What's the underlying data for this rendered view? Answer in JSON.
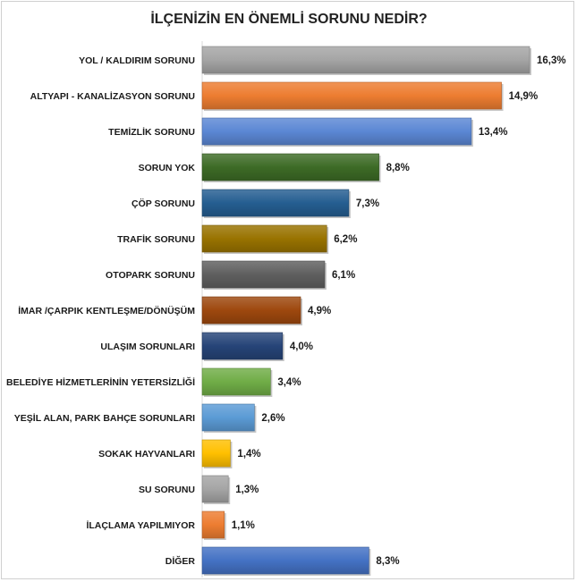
{
  "chart_data": {
    "type": "bar",
    "orientation": "horizontal",
    "title": "İLÇENİZİN EN ÖNEMLİ SORUNU NEDİR?",
    "categories": [
      "YOL / KALDIRIM SORUNU",
      "ALTYAPI - KANALİZASYON SORUNU",
      "TEMİZLİK SORUNU",
      "SORUN YOK",
      "ÇÖP SORUNU",
      "TRAFİK SORUNU",
      "OTOPARK SORUNU",
      "İMAR /ÇARPIK KENTLEŞME/DÖNÜŞÜM",
      "ULAŞIM SORUNLARI",
      "BELEDİYE HİZMETLERİNİN YETERSİZLİĞİ",
      "YEŞİL ALAN, PARK BAHÇE SORUNLARI",
      "SOKAK HAYVANLARI",
      "SU SORUNU",
      "İLAÇLAMA YAPILMIYOR",
      "DİĞER"
    ],
    "values": [
      16.3,
      14.9,
      13.4,
      8.8,
      7.3,
      6.2,
      6.1,
      4.9,
      4.0,
      3.4,
      2.6,
      1.4,
      1.3,
      1.1,
      8.3
    ],
    "value_labels": [
      "16,3%",
      "14,9%",
      "13,4%",
      "8,8%",
      "7,3%",
      "6,2%",
      "6,1%",
      "4,9%",
      "4,0%",
      "3,4%",
      "2,6%",
      "1,4%",
      "1,3%",
      "1,1%",
      "8,3%"
    ],
    "colors": [
      "#a5a5a5",
      "#ed7d31",
      "#5b87d4",
      "#3d6b26",
      "#255e91",
      "#997300",
      "#5f5f5f",
      "#9e480e",
      "#264478",
      "#70ad47",
      "#5b9bd5",
      "#ffc000",
      "#a5a5a5",
      "#ed7d31",
      "#4472c4"
    ],
    "xlim": [
      0,
      16.3
    ],
    "grid": false,
    "legend": "none"
  }
}
